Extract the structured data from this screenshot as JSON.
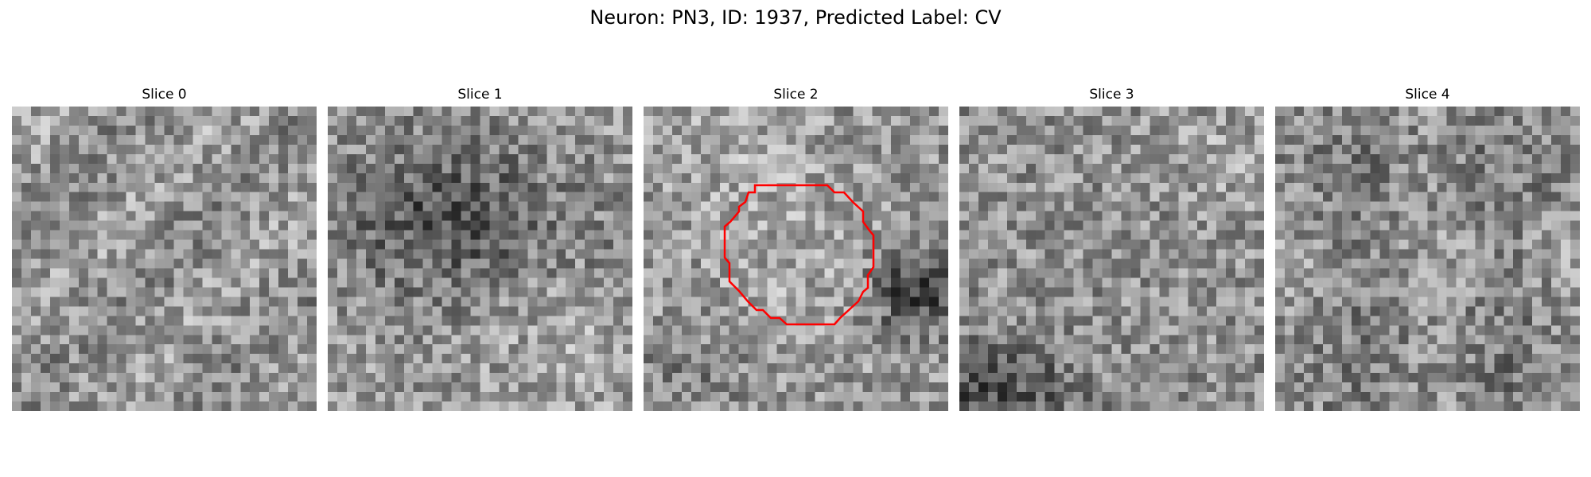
{
  "figure": {
    "title": "Neuron: PN3, ID: 1937, Predicted Label: CV"
  },
  "panels": [
    {
      "title": "Slice 0",
      "has_contour": false
    },
    {
      "title": "Slice 1",
      "has_contour": false
    },
    {
      "title": "Slice 2",
      "has_contour": true
    },
    {
      "title": "Slice 3",
      "has_contour": false
    },
    {
      "title": "Slice 4",
      "has_contour": false
    }
  ],
  "image_grid": {
    "pixels_per_side": 32,
    "colormap": "gray",
    "contour_color": "#ff0000"
  }
}
